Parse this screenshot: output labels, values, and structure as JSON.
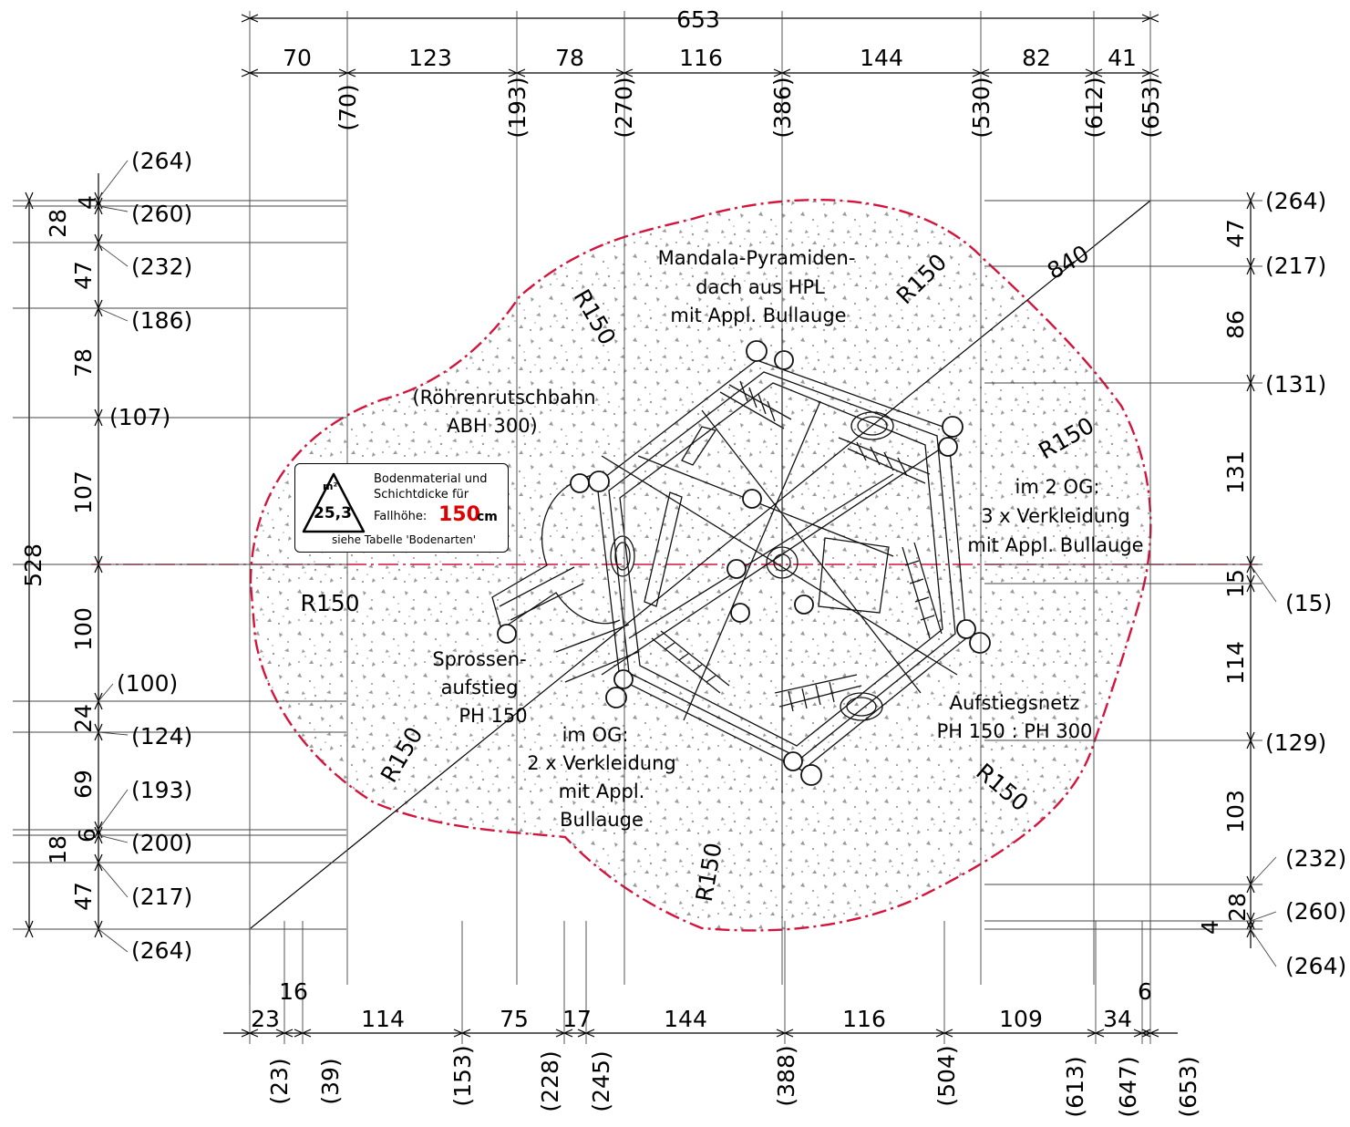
{
  "top_dims": {
    "total": "653",
    "segments": [
      "70",
      "123",
      "78",
      "116",
      "144",
      "82",
      "41"
    ],
    "positions": [
      "(70)",
      "(193)",
      "(270)",
      "(386)",
      "(530)",
      "(612)",
      "(653)"
    ]
  },
  "bottom_dims": {
    "segments": [
      "23",
      "16",
      "114",
      "75",
      "17",
      "144",
      "116",
      "109",
      "34",
      "6"
    ],
    "positions": [
      "(23)",
      "(39)",
      "(153)",
      "(228)",
      "(245)",
      "(388)",
      "(504)",
      "(613)",
      "(647)",
      "(653)"
    ]
  },
  "left_dims": {
    "total": "528",
    "segments": [
      "4",
      "28",
      "47",
      "78",
      "107",
      "100",
      "24",
      "69",
      "6",
      "18",
      "47"
    ],
    "positions": [
      "(264)",
      "(260)",
      "(232)",
      "(186)",
      "(107)",
      "(100)",
      "(124)",
      "(193)",
      "(200)",
      "(217)",
      "(264)"
    ]
  },
  "right_dims": {
    "segments": [
      "47",
      "86",
      "131",
      "15",
      "114",
      "103",
      "28",
      "4"
    ],
    "positions": [
      "(264)",
      "(217)",
      "(131)",
      "(15)",
      "(129)",
      "(232)",
      "(260)",
      "(264)"
    ]
  },
  "radii": [
    "R150",
    "R150",
    "R150",
    "R150",
    "R150",
    "R150",
    "R150"
  ],
  "diagonal": "840",
  "labels": {
    "roof": [
      "Mandala-Pyramiden-",
      "dach aus HPL",
      "mit Appl. Bullauge"
    ],
    "slide": [
      "(Röhrenrutschbahn",
      "ABH 300)"
    ],
    "og2": [
      "im 2 OG:",
      "3 x Verkleidung",
      "mit Appl. Bullauge"
    ],
    "ladder": [
      "Sprossen-",
      "aufstieg",
      "PH 150"
    ],
    "og": [
      "im OG:",
      "2 x Verkleidung",
      "mit Appl.",
      "Bullauge"
    ],
    "net": [
      "Aufstiegsnetz",
      "PH 150 : PH 300"
    ]
  },
  "legend": {
    "unit": "m²",
    "area": "25,3",
    "line1": "Bodenmaterial und",
    "line2": "Schichtdicke für",
    "line3": "Fallhöhe:",
    "fall_height": "150",
    "fall_unit": "cm",
    "line4": "siehe Tabelle 'Bodenarten'"
  },
  "colors": {
    "safety_zone": "#d4143c",
    "fall_height": "#e00000",
    "stipple": "#9a9a9a"
  }
}
